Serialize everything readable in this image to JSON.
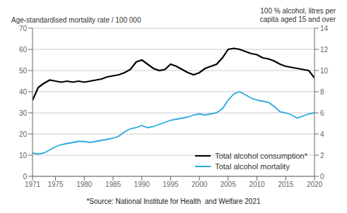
{
  "chart_data": {
    "type": "line",
    "x": [
      1971,
      1972,
      1973,
      1974,
      1975,
      1976,
      1977,
      1978,
      1979,
      1980,
      1981,
      1982,
      1983,
      1984,
      1985,
      1986,
      1987,
      1988,
      1989,
      1990,
      1991,
      1992,
      1993,
      1994,
      1995,
      1996,
      1997,
      1998,
      1999,
      2000,
      2001,
      2002,
      2003,
      2004,
      2005,
      2006,
      2007,
      2008,
      2009,
      2010,
      2011,
      2012,
      2013,
      2014,
      2015,
      2016,
      2017,
      2018,
      2019,
      2020
    ],
    "series": [
      {
        "name": "Total alcohol consumption*",
        "color": "#000000",
        "values": [
          36,
          42,
          44,
          45.5,
          45,
          44.5,
          45,
          44.5,
          45,
          44.5,
          45,
          45.5,
          46,
          47,
          47.5,
          48,
          49,
          50.5,
          54,
          55,
          53,
          51,
          50,
          50.5,
          53,
          52,
          50.5,
          49,
          48,
          49,
          51,
          52,
          53,
          56,
          60,
          60.5,
          60,
          59,
          58,
          57.5,
          56,
          55.5,
          54.5,
          53,
          52,
          51.5,
          51,
          50.5,
          50,
          46.5
        ]
      },
      {
        "name": "Total alcohol mortality",
        "color": "#29a8e0",
        "axis": "y2",
        "values": [
          2.2,
          2.1,
          2.2,
          2.5,
          2.8,
          3.0,
          3.1,
          3.2,
          3.3,
          3.3,
          3.2,
          3.3,
          3.4,
          3.5,
          3.6,
          3.8,
          4.2,
          4.5,
          4.6,
          4.8,
          4.6,
          4.7,
          4.9,
          5.1,
          5.3,
          5.4,
          5.5,
          5.6,
          5.8,
          5.9,
          5.8,
          5.9,
          6.0,
          6.4,
          7.2,
          7.8,
          8.0,
          7.7,
          7.4,
          7.2,
          7.1,
          7.0,
          6.6,
          6.1,
          6.0,
          5.8,
          5.5,
          5.7,
          5.9,
          6.0
        ]
      }
    ],
    "xlim": [
      1971,
      2020
    ],
    "xticks": [
      1971,
      1975,
      1980,
      1985,
      1990,
      1995,
      2000,
      2005,
      2010,
      2015,
      2020
    ],
    "ylim": [
      0,
      70
    ],
    "yticks": [
      0,
      10,
      20,
      30,
      40,
      50,
      60,
      70
    ],
    "y2lim": [
      0,
      14
    ],
    "y2ticks": [
      0,
      2,
      4,
      6,
      8,
      10,
      12,
      14
    ],
    "y_label": "Age-standardised mortality rate / 100 000",
    "y2_label": "100 % alcohol, litres per\ncapita aged 15 and over",
    "annotations": [
      "*Source: National Institute for Health  and Welfare 2021"
    ],
    "grid": true,
    "legend": "lower right"
  }
}
